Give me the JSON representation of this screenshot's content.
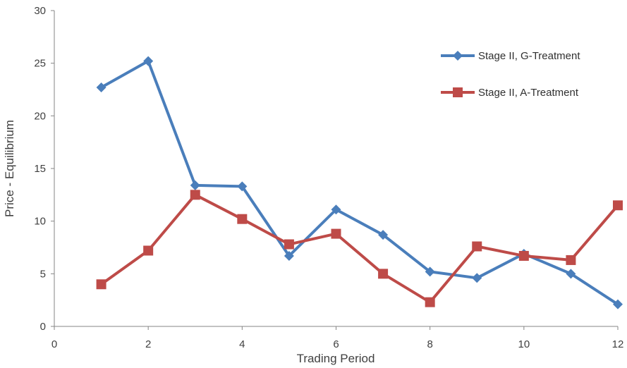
{
  "chart_data": {
    "type": "line",
    "title": "",
    "xlabel": "Trading Period",
    "ylabel": "Price - Equilibrium",
    "xlim": [
      0,
      12
    ],
    "ylim": [
      0,
      30
    ],
    "xticks": [
      0,
      2,
      4,
      6,
      8,
      10,
      12
    ],
    "yticks": [
      0,
      5,
      10,
      15,
      20,
      25,
      30
    ],
    "grid": false,
    "legend_position": "top-right",
    "x": [
      1,
      2,
      3,
      4,
      5,
      6,
      7,
      8,
      9,
      10,
      11,
      12
    ],
    "series": [
      {
        "name": "Stage II, G-Treatment",
        "color": "#4a7ebb",
        "marker": "diamond",
        "values": [
          22.7,
          25.2,
          13.4,
          13.3,
          6.7,
          11.1,
          8.7,
          5.2,
          4.6,
          6.9,
          5.0,
          2.1
        ]
      },
      {
        "name": "Stage II, A-Treatment",
        "color": "#be4b48",
        "marker": "square",
        "values": [
          4.0,
          7.2,
          12.5,
          10.2,
          7.8,
          8.8,
          5.0,
          2.3,
          7.6,
          6.7,
          6.3,
          11.5
        ]
      }
    ]
  }
}
